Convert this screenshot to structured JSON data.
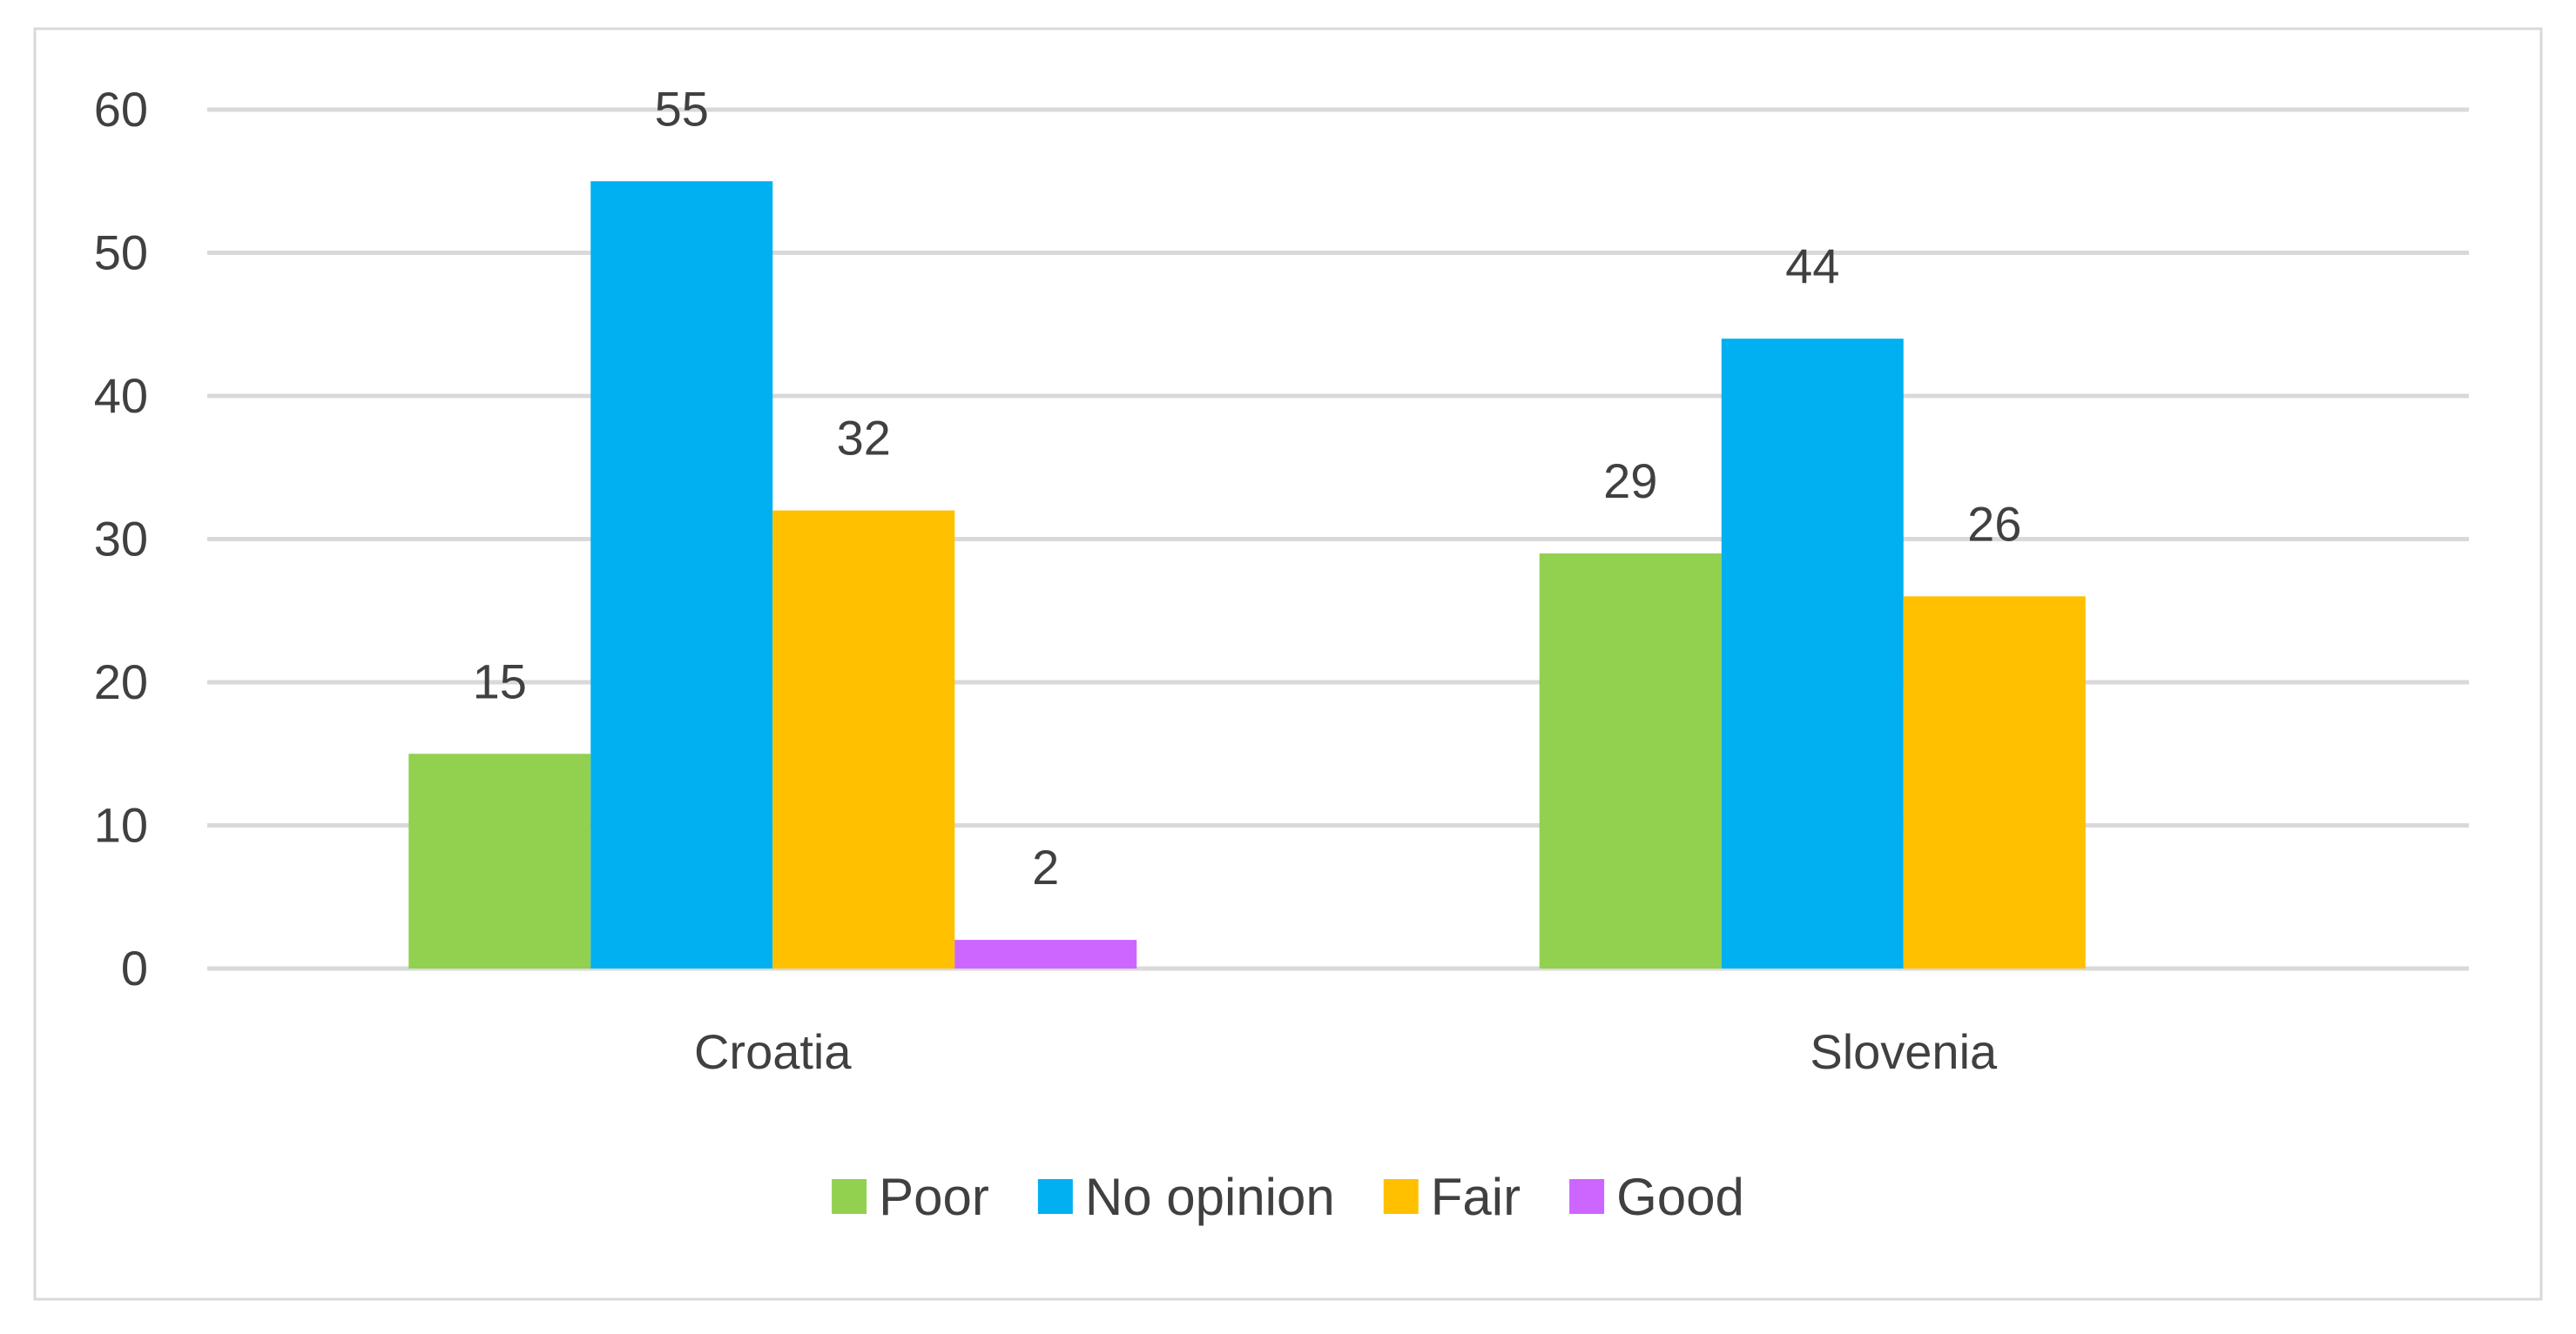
{
  "chart_data": {
    "type": "bar",
    "title": "",
    "xlabel": "",
    "ylabel": "",
    "categories": [
      "Croatia",
      "Slovenia"
    ],
    "series": [
      {
        "name": "Poor",
        "color": "#92D050",
        "values": [
          15,
          29
        ]
      },
      {
        "name": "No opinion",
        "color": "#00B0F0",
        "values": [
          55,
          44
        ]
      },
      {
        "name": "Fair",
        "color": "#FFC000",
        "values": [
          32,
          26
        ]
      },
      {
        "name": "Good",
        "color": "#CC66FF",
        "values": [
          2,
          null
        ]
      }
    ],
    "ylim": [
      0,
      60
    ],
    "yticks": [
      0,
      10,
      20,
      30,
      40,
      50,
      60
    ],
    "grid": true,
    "data_labels": true,
    "legend_position": "bottom"
  }
}
